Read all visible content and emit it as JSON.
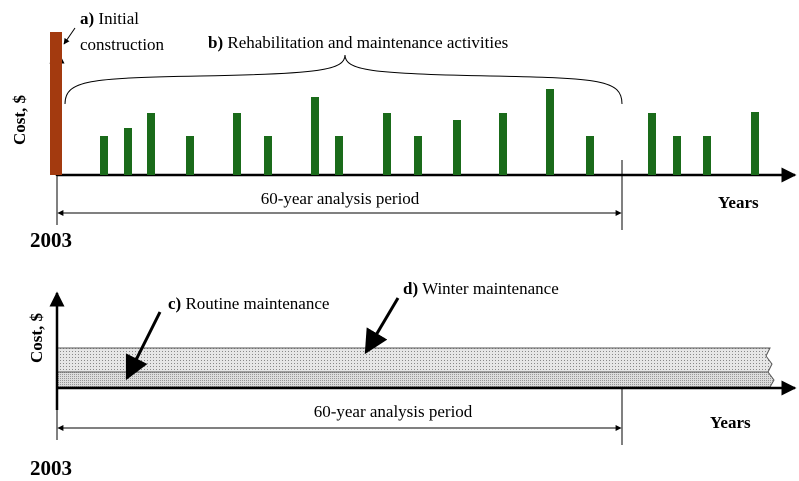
{
  "top": {
    "y_label": "Cost, $",
    "a": {
      "letter": "a)",
      "lines": [
        "Initial",
        "construction"
      ]
    },
    "b": {
      "letter": "b)",
      "text": "Rehabilitation and maintenance activities"
    },
    "period": "60-year analysis period",
    "x_label": "Years",
    "start": "2003"
  },
  "bottom": {
    "y_label": "Cost, $",
    "c": {
      "letter": "c)",
      "text": "Routine maintenance"
    },
    "d": {
      "letter": "d)",
      "text": "Winter maintenance"
    },
    "period": "60-year analysis period",
    "x_label": "Years",
    "start": "2003"
  }
}
